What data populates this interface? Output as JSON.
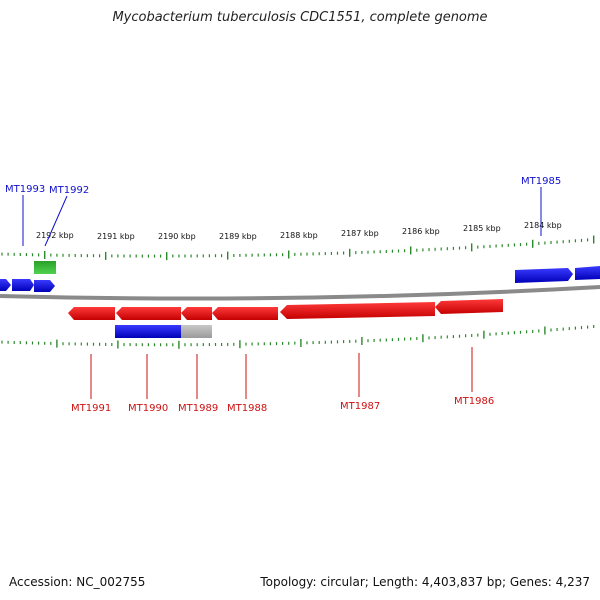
{
  "title": "Mycobacterium tuberculosis CDC1551, complete genome",
  "footer": {
    "accession": "Accession: NC_002755",
    "summary": "Topology: circular; Length: 4,403,837 bp; Genes: 4,237"
  },
  "colors": {
    "forward_gene": "#1a1aee",
    "reverse_gene": "#ee1a1a",
    "rna_gene": "#2ec02e",
    "pseudo_gene": "#b4b4b4",
    "backbone": "#8a8a8a",
    "tick": "#2a8a2a",
    "label_forward": "#1111cc",
    "label_reverse": "#cc1111"
  },
  "scale_top": [
    "2192 kbp",
    "2191 kbp",
    "2190 kbp",
    "2189 kbp",
    "2188 kbp",
    "2187 kbp",
    "2186 kbp",
    "2185 kbp",
    "2184 kbp"
  ],
  "genes": [
    {
      "id": "MT1993",
      "strand": "forward",
      "label_color": "blue"
    },
    {
      "id": "MT1992",
      "strand": "rna",
      "label_color": "blue"
    },
    {
      "id": "MT1985",
      "strand": "forward",
      "label_color": "blue"
    },
    {
      "id": "MT1991",
      "strand": "reverse",
      "label_color": "red"
    },
    {
      "id": "MT1990",
      "strand": "reverse",
      "label_color": "red"
    },
    {
      "id": "MT1989",
      "strand": "reverse",
      "label_color": "red"
    },
    {
      "id": "MT1988",
      "strand": "reverse",
      "label_color": "red"
    },
    {
      "id": "MT1987",
      "strand": "reverse",
      "label_color": "red"
    },
    {
      "id": "MT1986",
      "strand": "reverse",
      "label_color": "red"
    }
  ]
}
